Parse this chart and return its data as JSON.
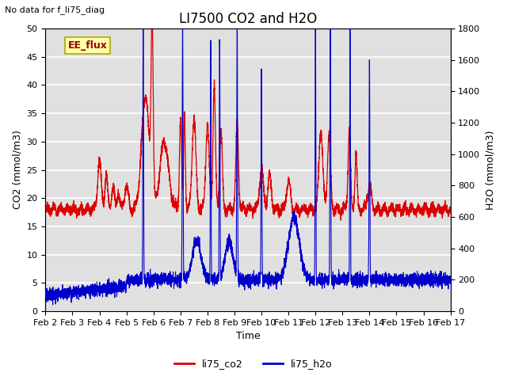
{
  "title": "LI7500 CO2 and H2O",
  "top_left_text": "No data for f_li75_diag",
  "box_text": "EE_flux",
  "xlabel": "Time",
  "ylabel_left": "CO2 (mmol/m3)",
  "ylabel_right": "H2O (mmol/m3)",
  "co2_color": "#dd0000",
  "h2o_color": "#0000cc",
  "background_color": "#e0e0e0",
  "ylim_co2": [
    0,
    50
  ],
  "ylim_h2o": [
    0,
    1800
  ],
  "xtick_labels": [
    "Feb 2",
    "Feb 3",
    "Feb 4",
    "Feb 5",
    "Feb 6",
    "Feb 7",
    "Feb 8",
    "Feb 9",
    "Feb 10",
    "Feb 11",
    "Feb 12",
    "Feb 13",
    "Feb 14",
    "Feb 15",
    "Feb 16",
    "Feb 17"
  ],
  "legend_labels": [
    "li75_co2",
    "li75_h2o"
  ],
  "box_facecolor": "#ffffaa",
  "box_edgecolor": "#aaaa00"
}
